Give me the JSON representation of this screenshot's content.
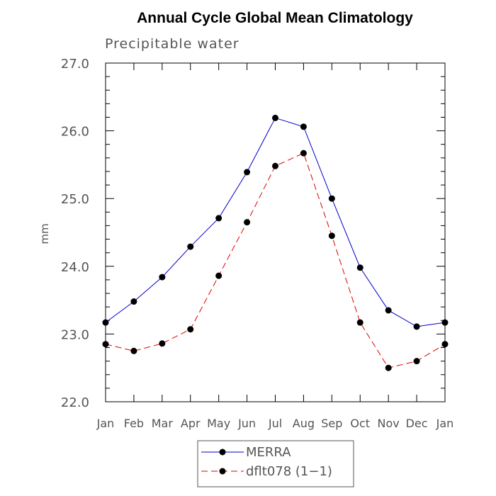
{
  "chart_data": {
    "type": "line",
    "title": "Annual Cycle Global Mean Climatology",
    "subtitle": "Precipitable water",
    "xlabel": "",
    "ylabel": "mm",
    "categories": [
      "Jan",
      "Feb",
      "Mar",
      "Apr",
      "May",
      "Jun",
      "Jul",
      "Aug",
      "Sep",
      "Oct",
      "Nov",
      "Dec",
      "Jan"
    ],
    "ylim": [
      22.0,
      27.0
    ],
    "yticks": [
      "22.0",
      "23.0",
      "24.0",
      "25.0",
      "26.0",
      "27.0"
    ],
    "grid": false,
    "legend_position": "bottom",
    "series": [
      {
        "name": "MERRA",
        "color": "#0000cc",
        "dash": "solid",
        "marker": "circle",
        "values": [
          23.17,
          23.48,
          23.84,
          24.29,
          24.71,
          25.39,
          26.19,
          26.06,
          25.0,
          23.98,
          23.35,
          23.11,
          23.17
        ]
      },
      {
        "name": "dflt078 (1−1)",
        "color": "#dd0000",
        "dash": "dashed",
        "marker": "circle",
        "values": [
          22.85,
          22.75,
          22.86,
          23.07,
          23.86,
          24.65,
          25.48,
          25.67,
          24.45,
          23.17,
          22.5,
          22.6,
          22.85
        ]
      }
    ]
  }
}
